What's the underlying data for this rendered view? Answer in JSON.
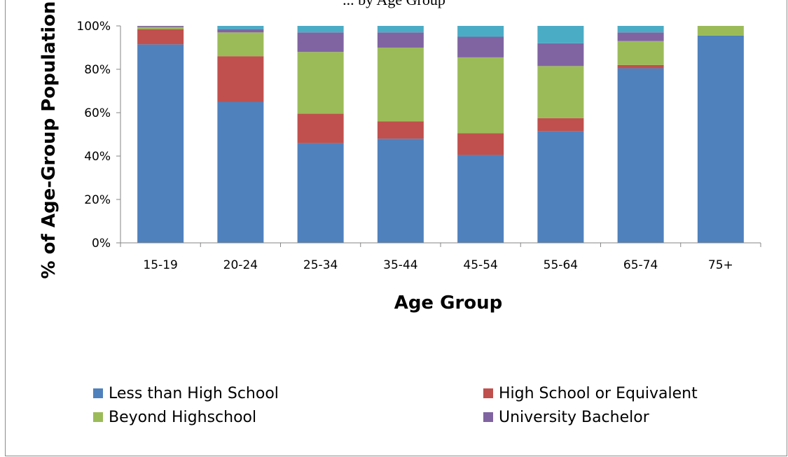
{
  "chart_data": {
    "type": "bar",
    "stacked": true,
    "title": "... by Age Group",
    "xlabel": "Age Group",
    "ylabel": "% of Age-Group Population",
    "ylim": [
      0,
      100
    ],
    "yticks": [
      0,
      20,
      40,
      60,
      80,
      100
    ],
    "ytick_labels": [
      "0%",
      "20%",
      "40%",
      "60%",
      "80%",
      "100%"
    ],
    "grid": false,
    "legend_position": "bottom",
    "categories": [
      "15-19",
      "20-24",
      "25-34",
      "35-44",
      "45-54",
      "55-64",
      "65-74",
      "75+"
    ],
    "series": [
      {
        "name": "Less than High School",
        "color": "#4F81BD",
        "values": [
          91.5,
          65,
          46,
          48,
          40.5,
          51.5,
          80.5,
          95.5
        ]
      },
      {
        "name": "High School or Equivalent",
        "color": "#C0504D",
        "values": [
          7,
          21,
          13.5,
          8,
          10,
          6,
          1.5,
          0
        ]
      },
      {
        "name": "Beyond Highschool",
        "color": "#9BBB59",
        "values": [
          1,
          11,
          28.5,
          34,
          35,
          24,
          11,
          4.5
        ]
      },
      {
        "name": "University Bachelor",
        "color": "#8064A2",
        "values": [
          0.5,
          1.5,
          9,
          7,
          9.5,
          10.5,
          4,
          0
        ]
      },
      {
        "name": "",
        "color": "#4BACC6",
        "values": [
          0,
          1.5,
          3,
          3,
          5,
          8,
          3,
          0
        ]
      }
    ],
    "legend_entries": [
      "Less than High School",
      "High School or Equivalent",
      "Beyond Highschool",
      "University Bachelor"
    ]
  }
}
